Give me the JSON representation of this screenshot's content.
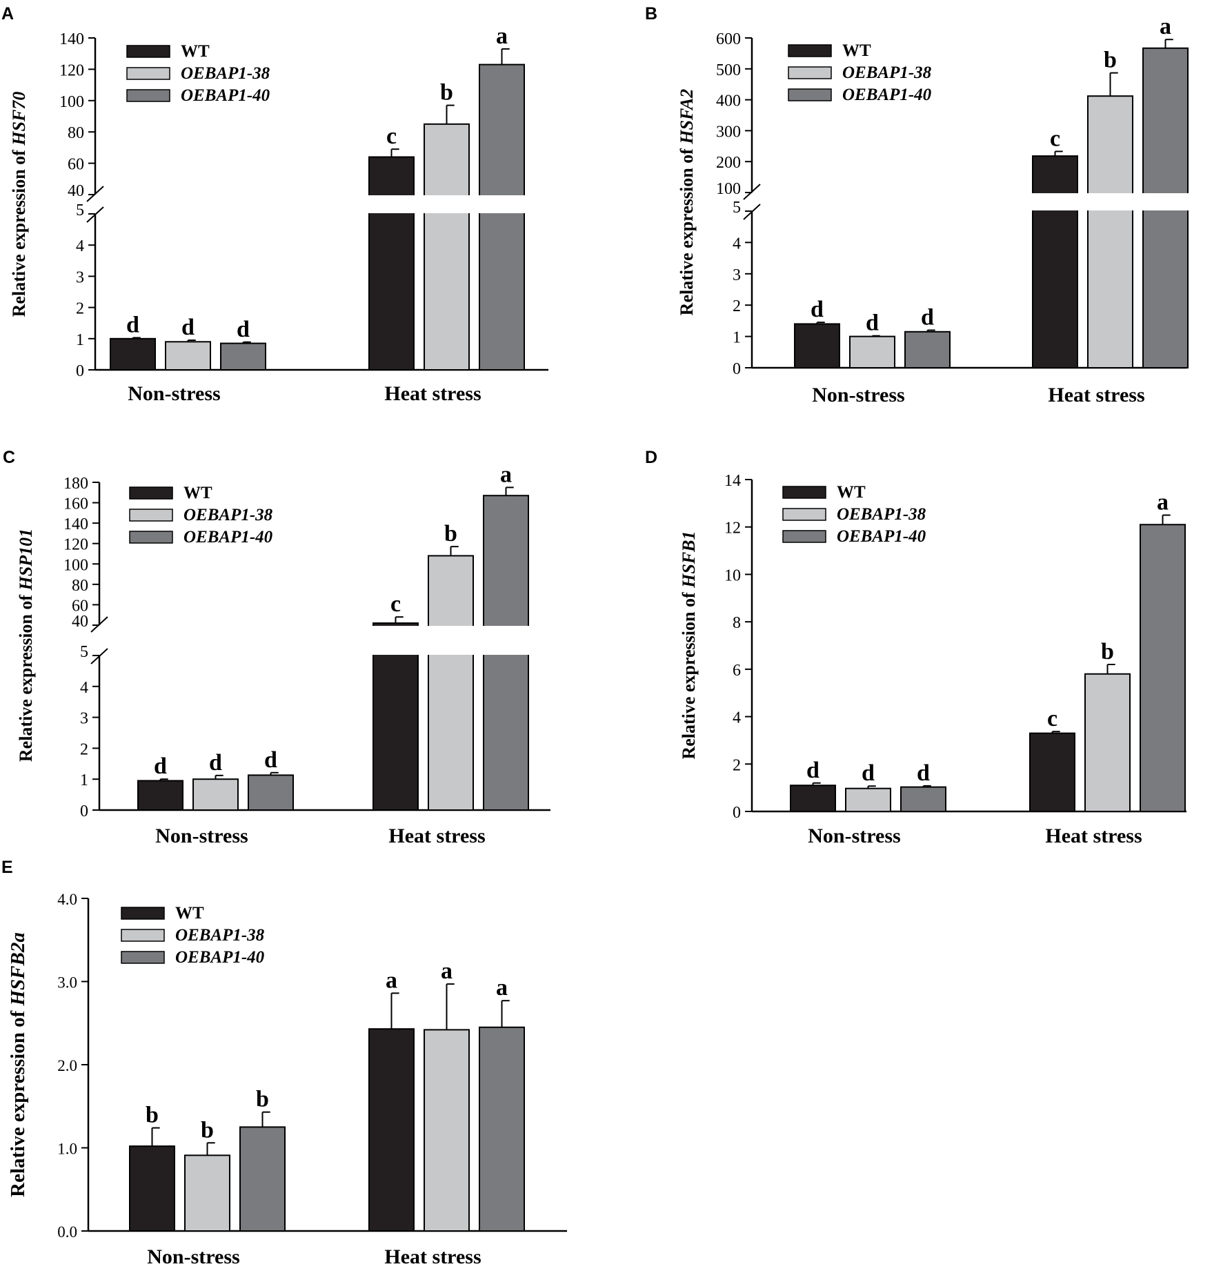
{
  "figure": {
    "series_names": [
      "WT",
      "OEBAP1-38",
      "OEBAP1-40"
    ],
    "series_italic": [
      false,
      true,
      true
    ],
    "series_colors": [
      "#231f20",
      "#c7c8ca",
      "#7a7b7e"
    ],
    "categories": [
      "Non-stress",
      "Heat stress"
    ],
    "ylabel_prefix": "Relative expression of "
  },
  "chart_data": [
    {
      "panel": "A",
      "type": "bar",
      "gene": "HSF70",
      "categories": [
        "Non-stress",
        "Heat stress"
      ],
      "series": [
        {
          "name": "WT",
          "values": [
            1.0,
            64
          ],
          "errors": [
            0.03,
            5
          ],
          "letters": [
            "d",
            "c"
          ]
        },
        {
          "name": "OEBAP1-38",
          "values": [
            0.9,
            85
          ],
          "errors": [
            0.05,
            12
          ],
          "letters": [
            "d",
            "b"
          ]
        },
        {
          "name": "OEBAP1-40",
          "values": [
            0.85,
            123
          ],
          "errors": [
            0.04,
            10
          ],
          "letters": [
            "d",
            "a"
          ]
        }
      ],
      "axis_break": {
        "lower": [
          0,
          5
        ],
        "upper": [
          40,
          140
        ]
      },
      "lower_ticks": [
        "0",
        "1",
        "2",
        "3",
        "4",
        "5"
      ],
      "upper_ticks": [
        "40",
        "60",
        "80",
        "100",
        "120",
        "140"
      ]
    },
    {
      "panel": "B",
      "type": "bar",
      "gene": "HSFA2",
      "categories": [
        "Non-stress",
        "Heat stress"
      ],
      "series": [
        {
          "name": "WT",
          "values": [
            1.4,
            218
          ],
          "errors": [
            0.05,
            15
          ],
          "letters": [
            "d",
            "c"
          ]
        },
        {
          "name": "OEBAP1-38",
          "values": [
            1.0,
            412
          ],
          "errors": [
            0.02,
            75
          ],
          "letters": [
            "d",
            "b"
          ]
        },
        {
          "name": "OEBAP1-40",
          "values": [
            1.15,
            567
          ],
          "errors": [
            0.05,
            28
          ],
          "letters": [
            "d",
            "a"
          ]
        }
      ],
      "axis_break": {
        "lower": [
          0,
          5
        ],
        "upper": [
          100,
          600
        ]
      },
      "lower_ticks": [
        "0",
        "1",
        "2",
        "3",
        "4",
        "5"
      ],
      "upper_ticks": [
        "100",
        "200",
        "300",
        "400",
        "500",
        "600"
      ]
    },
    {
      "panel": "C",
      "type": "bar",
      "gene": "HSP101",
      "categories": [
        "Non-stress",
        "Heat stress"
      ],
      "series": [
        {
          "name": "WT",
          "values": [
            0.95,
            42
          ],
          "errors": [
            0.05,
            6
          ],
          "letters": [
            "d",
            "c"
          ]
        },
        {
          "name": "OEBAP1-38",
          "values": [
            1.0,
            108
          ],
          "errors": [
            0.12,
            9
          ],
          "letters": [
            "d",
            "b"
          ]
        },
        {
          "name": "OEBAP1-40",
          "values": [
            1.13,
            167
          ],
          "errors": [
            0.08,
            8
          ],
          "letters": [
            "d",
            "a"
          ]
        }
      ],
      "axis_break": {
        "lower": [
          0,
          5
        ],
        "upper": [
          40,
          180
        ]
      },
      "lower_ticks": [
        "0",
        "1",
        "2",
        "3",
        "4",
        "5"
      ],
      "upper_ticks": [
        "40",
        "60",
        "80",
        "100",
        "120",
        "140",
        "160",
        "180"
      ]
    },
    {
      "panel": "D",
      "type": "bar",
      "gene": "HSFB1",
      "categories": [
        "Non-stress",
        "Heat stress"
      ],
      "series": [
        {
          "name": "WT",
          "values": [
            1.1,
            3.3
          ],
          "errors": [
            0.1,
            0.07
          ],
          "letters": [
            "d",
            "c"
          ]
        },
        {
          "name": "OEBAP1-38",
          "values": [
            0.97,
            5.8
          ],
          "errors": [
            0.1,
            0.4
          ],
          "letters": [
            "d",
            "b"
          ]
        },
        {
          "name": "OEBAP1-40",
          "values": [
            1.03,
            12.1
          ],
          "errors": [
            0.05,
            0.4
          ],
          "letters": [
            "d",
            "a"
          ]
        }
      ],
      "ylim": [
        0,
        14
      ],
      "ticks": [
        "0",
        "2",
        "4",
        "6",
        "8",
        "10",
        "12",
        "14"
      ]
    },
    {
      "panel": "E",
      "type": "bar",
      "gene": "HSFB2a",
      "categories": [
        "Non-stress",
        "Heat stress"
      ],
      "series": [
        {
          "name": "WT",
          "values": [
            1.02,
            2.43
          ],
          "errors": [
            0.22,
            0.43
          ],
          "letters": [
            "b",
            "a"
          ]
        },
        {
          "name": "OEBAP1-38",
          "values": [
            0.91,
            2.42
          ],
          "errors": [
            0.15,
            0.55
          ],
          "letters": [
            "b",
            "a"
          ]
        },
        {
          "name": "OEBAP1-40",
          "values": [
            1.25,
            2.45
          ],
          "errors": [
            0.18,
            0.32
          ],
          "letters": [
            "b",
            "a"
          ]
        }
      ],
      "ylim": [
        0,
        4
      ],
      "ticks": [
        "0.0",
        "1.0",
        "2.0",
        "3.0",
        "4.0"
      ]
    }
  ]
}
